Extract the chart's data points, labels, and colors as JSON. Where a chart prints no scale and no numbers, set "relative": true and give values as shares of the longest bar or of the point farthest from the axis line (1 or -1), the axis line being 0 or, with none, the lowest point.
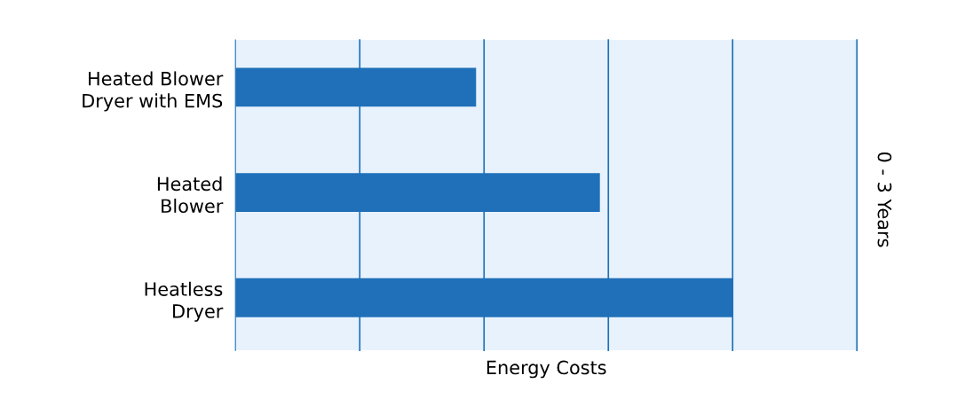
{
  "chart_data": {
    "type": "bar",
    "orientation": "horizontal",
    "relative": true,
    "categories": [
      "Heated Blower\nDryer with EMS",
      "Heated\nBlower",
      "Heatless\nDryer"
    ],
    "values": [
      0.484,
      0.733,
      1
    ],
    "color": "#1f70b8",
    "ref_lines": [
      {
        "axis": "x",
        "value": 0.25,
        "color": "#1f70b8"
      },
      {
        "axis": "x",
        "value": 0.5,
        "color": "#1f70b8"
      },
      {
        "axis": "x",
        "value": 0.75,
        "color": "#1f70b8"
      },
      {
        "axis": "x",
        "value": 1,
        "color": "#1f70b8"
      },
      {
        "axis": "x",
        "value": 1.25,
        "color": "#1f70b8"
      }
    ],
    "xlabel": "Energy Costs",
    "annotations": [
      "0 - 3 Years"
    ]
  }
}
